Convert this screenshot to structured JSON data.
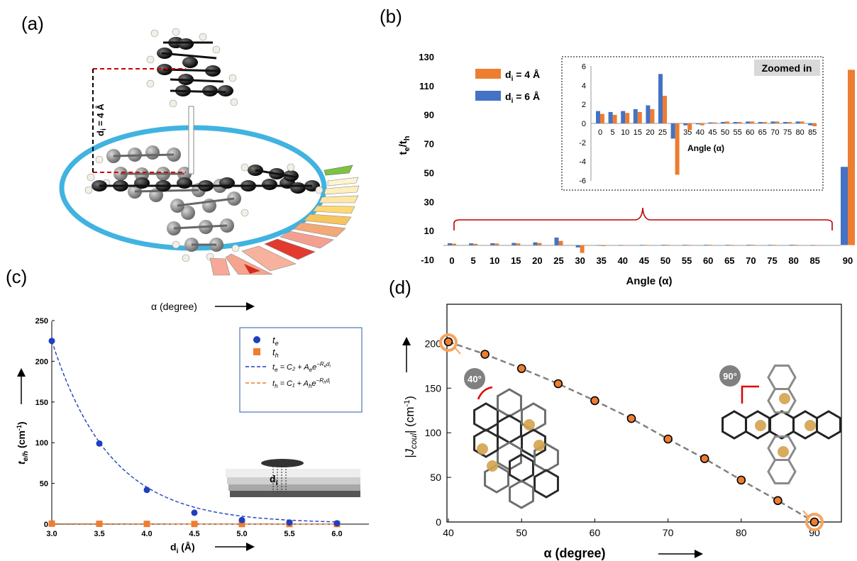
{
  "figure": {
    "panel_labels": [
      "(a)",
      "(b)",
      "(c)",
      "(d)"
    ]
  },
  "panel_a": {
    "label": "(a)",
    "distance_label": "d",
    "distance_sub": "i",
    "distance_value": " = 4 Å",
    "angle_axis_label": "α (degree)"
  },
  "chart_data": [
    {
      "id": "b",
      "type": "bar",
      "panel_label": "(b)",
      "ylabel": "t",
      "ylabel_sub_e": "e",
      "ylabel_sub_h": "h",
      "xlabel": "Angle (α)",
      "categories": [
        "0",
        "5",
        "10",
        "15",
        "20",
        "25",
        "30",
        "35",
        "40",
        "45",
        "50",
        "55",
        "60",
        "65",
        "70",
        "75",
        "80",
        "85",
        "90"
      ],
      "ylim": [
        -10,
        130
      ],
      "yticks": [
        -10,
        10,
        30,
        50,
        70,
        90,
        110,
        130
      ],
      "legend_position": "top-left",
      "series": [
        {
          "name": "di = 4 Å",
          "name_main": "d",
          "name_sub": "i",
          "name_rest": " = 4 Å",
          "color": "#ED7D31",
          "values": [
            1.0,
            0.9,
            1.1,
            1.2,
            1.5,
            2.9,
            -5.4,
            -0.7,
            -0.2,
            0.1,
            0.2,
            0.15,
            0.2,
            0.15,
            0.2,
            0.15,
            0.2,
            -0.3,
            121
          ]
        },
        {
          "name": "di = 6 Å",
          "name_main": "d",
          "name_sub": "i",
          "name_rest": " = 6 Å",
          "color": "#4472C4",
          "values": [
            1.3,
            1.2,
            1.3,
            1.5,
            1.9,
            5.2,
            -1.6,
            -0.2,
            -0.1,
            0.1,
            0.15,
            0.15,
            0.2,
            0.15,
            0.2,
            0.15,
            0.2,
            -0.2,
            54
          ]
        }
      ],
      "inset": {
        "title": "Zoomed in",
        "xlabel": "Angle (α)",
        "categories": [
          "0",
          "5",
          "10",
          "15",
          "20",
          "25",
          "30",
          "35",
          "40",
          "45",
          "50",
          "55",
          "60",
          "65",
          "70",
          "75",
          "80",
          "85"
        ],
        "ylim": [
          -6,
          6
        ],
        "yticks": [
          -6,
          -4,
          -2,
          0,
          2,
          4,
          6
        ]
      }
    },
    {
      "id": "c",
      "type": "scatter",
      "panel_label": "(c)",
      "xlabel": "d",
      "xlabel_sub": "i",
      "xlabel_unit": " (Å)",
      "ylabel": "t",
      "ylabel_sub": "e/h",
      "ylabel_unit": " (cm",
      "ylabel_sup": "-1",
      "ylabel_close": ")",
      "xlim": [
        3.0,
        6.3
      ],
      "ylim": [
        0,
        250
      ],
      "xticks": [
        "3.0",
        "3.5",
        "4.0",
        "4.5",
        "5.0",
        "5.5",
        "6.0"
      ],
      "yticks": [
        "0",
        "50",
        "100",
        "150",
        "200",
        "250"
      ],
      "legend_position": "top-right",
      "inset_label": "d",
      "inset_label_sub": "i",
      "series": [
        {
          "name": "te",
          "color": "#1F3FBF",
          "marker": "circle",
          "x": [
            3.0,
            3.5,
            4.0,
            4.5,
            5.0,
            5.5,
            6.0
          ],
          "y": [
            225,
            99,
            42,
            14,
            5,
            2,
            1
          ]
        },
        {
          "name": "th",
          "color": "#ED7D31",
          "marker": "square",
          "x": [
            3.0,
            3.5,
            4.0,
            4.5,
            5.0,
            5.5,
            6.0
          ],
          "y": [
            0.6,
            0.4,
            0.3,
            0.2,
            0.1,
            0.1,
            0.1
          ]
        }
      ],
      "legend": [
        {
          "main": "t",
          "sub": "e"
        },
        {
          "main": "t",
          "sub": "h"
        },
        {
          "main": "t",
          "sub": "e",
          "rest": " = C₂ + A",
          "sub2": "e",
          "rest2": "e",
          "sup": "−R",
          "supsub": "e",
          "sup2": "d",
          "supsub2": "i"
        },
        {
          "main": "t",
          "sub": "h",
          "rest": " = C₁ + A",
          "sub2": "h",
          "rest2": "e",
          "sup": "−R",
          "supsub": "h",
          "sup2": "d",
          "supsub2": "i"
        }
      ]
    },
    {
      "id": "d",
      "type": "line",
      "panel_label": "(d)",
      "xlabel": "α (degree)",
      "ylabel": "|J",
      "ylabel_sub": "coul",
      "ylabel_unit": "| (cm",
      "ylabel_sup": "-1",
      "ylabel_close": ")",
      "xlim": [
        40,
        94
      ],
      "ylim": [
        0,
        220
      ],
      "xticks": [
        "40",
        "50",
        "60",
        "70",
        "80",
        "90"
      ],
      "yticks": [
        "0",
        "50",
        "100",
        "150",
        "200"
      ],
      "series": [
        {
          "color": "#ED7D31",
          "x": [
            40,
            45,
            50,
            55,
            60,
            65,
            70,
            75,
            80,
            85,
            90
          ],
          "y": [
            202,
            188,
            172,
            155,
            136,
            116,
            93,
            71,
            47,
            24,
            0
          ]
        }
      ],
      "annotations": [
        "40°",
        "90°"
      ]
    }
  ]
}
